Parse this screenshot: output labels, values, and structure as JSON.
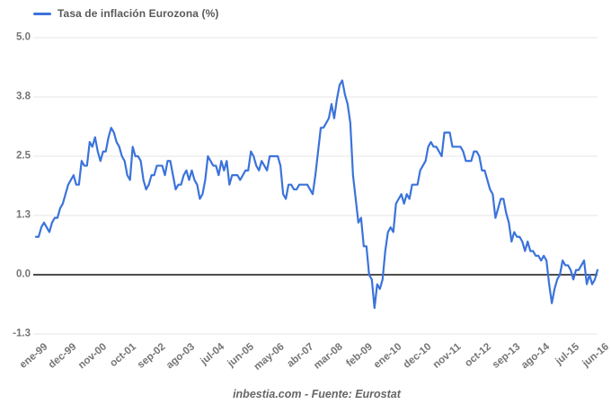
{
  "colors": {
    "series_line": "#3b73db",
    "grid_line": "#e6e6e6",
    "zero_line": "#4d4d4d",
    "axis_label": "#757575",
    "legend_text": "#58595b",
    "footer_text": "#666666",
    "background": "#ffffff"
  },
  "legend": {
    "label": "Tasa de inflación Eurozona (%)"
  },
  "footer": {
    "text": "inbestia.com - Fuente: Eurostat"
  },
  "chart_data": {
    "type": "line",
    "title": "",
    "legend_entries": [
      "Tasa de inflación Eurozona (%)"
    ],
    "legend_position": "top-left",
    "grid": true,
    "xlabel": "",
    "ylabel": "",
    "ylim": [
      -1.25,
      5.0
    ],
    "y_ticks": [
      {
        "label": "5.0",
        "value": 5.0
      },
      {
        "label": "3.8",
        "value": 3.75
      },
      {
        "label": "2.5",
        "value": 2.5
      },
      {
        "label": "1.3",
        "value": 1.25
      },
      {
        "label": "0.0",
        "value": 0.0
      },
      {
        "label": "-1.3",
        "value": -1.25
      }
    ],
    "x_tick_labels": [
      "ene-99",
      "dec-99",
      "nov-00",
      "oct-01",
      "sep-02",
      "ago-03",
      "jul-04",
      "jun-05",
      "may-06",
      "abr-07",
      "mar-08",
      "feb-09",
      "ene-10",
      "dec-10",
      "nov-11",
      "oct-12",
      "sep-13",
      "ago-14",
      "jul-15",
      "jun-16"
    ],
    "x_tick_month_interval": 11,
    "x_range": "monthly, ene-99 (Jan 1999) to jun-16 (Jun 2016)",
    "series": [
      {
        "name": "Tasa de inflación Eurozona (%)",
        "color": "#3b73db",
        "values": [
          0.8,
          0.8,
          1.0,
          1.1,
          1.0,
          0.9,
          1.1,
          1.2,
          1.2,
          1.4,
          1.5,
          1.7,
          1.9,
          2.0,
          2.1,
          1.9,
          1.9,
          2.4,
          2.3,
          2.3,
          2.8,
          2.7,
          2.9,
          2.6,
          2.4,
          2.6,
          2.6,
          2.9,
          3.1,
          3.0,
          2.8,
          2.7,
          2.5,
          2.4,
          2.1,
          2.0,
          2.7,
          2.5,
          2.5,
          2.4,
          2.0,
          1.8,
          1.9,
          2.1,
          2.1,
          2.3,
          2.3,
          2.3,
          2.1,
          2.4,
          2.4,
          2.1,
          1.8,
          1.9,
          1.9,
          2.1,
          2.2,
          2.0,
          2.2,
          2.0,
          1.9,
          1.6,
          1.7,
          2.0,
          2.5,
          2.4,
          2.3,
          2.3,
          2.1,
          2.4,
          2.2,
          2.4,
          1.9,
          2.1,
          2.1,
          2.1,
          2.0,
          2.1,
          2.2,
          2.2,
          2.6,
          2.5,
          2.3,
          2.2,
          2.4,
          2.3,
          2.2,
          2.5,
          2.5,
          2.5,
          2.5,
          2.3,
          1.7,
          1.6,
          1.9,
          1.9,
          1.8,
          1.8,
          1.9,
          1.9,
          1.9,
          1.9,
          1.8,
          1.7,
          2.1,
          2.6,
          3.1,
          3.1,
          3.2,
          3.3,
          3.6,
          3.3,
          3.7,
          4.0,
          4.1,
          3.8,
          3.6,
          3.2,
          2.1,
          1.6,
          1.1,
          1.2,
          0.6,
          0.6,
          0.0,
          -0.1,
          -0.7,
          -0.2,
          -0.3,
          -0.1,
          0.5,
          0.9,
          1.0,
          0.9,
          1.5,
          1.6,
          1.7,
          1.5,
          1.7,
          1.6,
          1.9,
          1.9,
          1.9,
          2.2,
          2.3,
          2.4,
          2.7,
          2.8,
          2.7,
          2.7,
          2.6,
          2.5,
          3.0,
          3.0,
          3.0,
          2.7,
          2.7,
          2.7,
          2.7,
          2.6,
          2.4,
          2.4,
          2.4,
          2.6,
          2.6,
          2.5,
          2.2,
          2.2,
          2.0,
          1.8,
          1.7,
          1.2,
          1.4,
          1.6,
          1.6,
          1.3,
          1.1,
          0.7,
          0.9,
          0.8,
          0.8,
          0.7,
          0.5,
          0.7,
          0.5,
          0.5,
          0.4,
          0.4,
          0.3,
          0.4,
          0.3,
          -0.2,
          -0.6,
          -0.3,
          -0.1,
          0.0,
          0.3,
          0.2,
          0.2,
          0.1,
          -0.1,
          0.1,
          0.1,
          0.2,
          0.3,
          -0.2,
          0.0,
          -0.2,
          -0.1,
          0.1
        ]
      }
    ],
    "footer": "inbestia.com - Fuente: Eurostat"
  }
}
